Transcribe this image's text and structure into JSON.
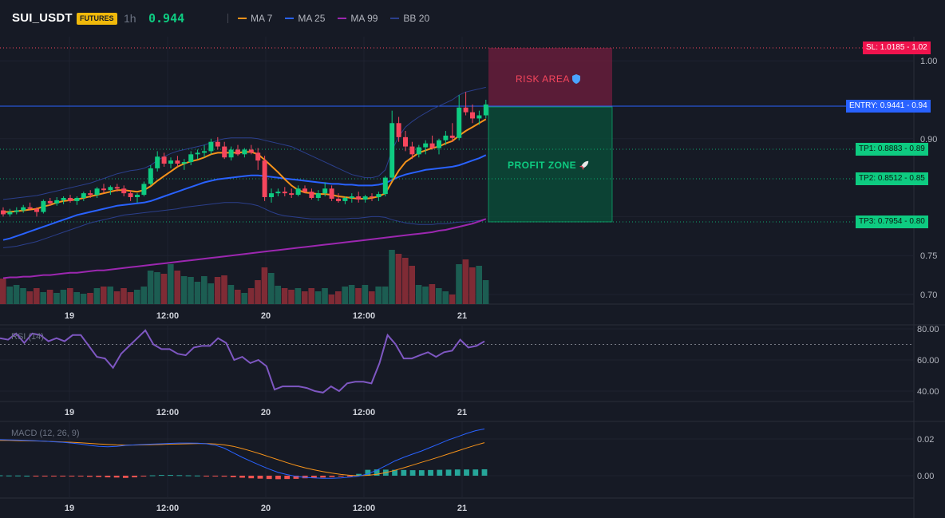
{
  "header": {
    "symbol": "SUI_USDT",
    "badge": "FUTURES",
    "timeframe": "1h",
    "last_price": "0.944",
    "indicators": [
      {
        "name": "MA 7",
        "color": "#f7931a"
      },
      {
        "name": "MA 25",
        "color": "#2962ff"
      },
      {
        "name": "MA 99",
        "color": "#9c27b0"
      },
      {
        "name": "BB 20",
        "color": "#2b3f8c"
      }
    ]
  },
  "zones": {
    "risk": "RISK AREA",
    "risk_icon": "shield-icon",
    "profit": "PROFIT ZONE",
    "profit_icon": "rocket-icon"
  },
  "levels": {
    "sl": "SL: 1.0185",
    "sl_axis": "1.02",
    "entry": "ENTRY: 0.9441",
    "entry_axis": "0.94",
    "tp1": "TP1: 0.8883",
    "tp1_axis": "0.89",
    "tp2": "TP2: 0.8512",
    "tp2_axis": "0.85",
    "tp3": "TP3: 0.7954",
    "tp3_axis": "0.80"
  },
  "colors": {
    "up": "#0ecb81",
    "down": "#f6465d",
    "sl": "#f6465d",
    "entry": "#2962ff",
    "tp": "#0ecb81",
    "rsi": "#7e57c2",
    "macd": "#2962ff",
    "signal": "#f7931a"
  },
  "chart_data": [
    {
      "type": "candlestick",
      "x_ticks": [
        "19",
        "12:00",
        "20",
        "12:00",
        "21"
      ],
      "y_ticks": [
        "1.00",
        "0.90",
        "0.75",
        "0.70"
      ],
      "candles": [
        [
          0.808,
          0.812,
          0.8,
          0.803
        ],
        [
          0.803,
          0.81,
          0.8,
          0.806
        ],
        [
          0.806,
          0.812,
          0.803,
          0.808
        ],
        [
          0.808,
          0.815,
          0.805,
          0.812
        ],
        [
          0.812,
          0.818,
          0.808,
          0.81
        ],
        [
          0.81,
          0.812,
          0.8,
          0.806
        ],
        [
          0.806,
          0.822,
          0.804,
          0.82
        ],
        [
          0.82,
          0.824,
          0.814,
          0.817
        ],
        [
          0.817,
          0.825,
          0.814,
          0.821
        ],
        [
          0.821,
          0.826,
          0.816,
          0.824
        ],
        [
          0.824,
          0.828,
          0.818,
          0.82
        ],
        [
          0.82,
          0.826,
          0.815,
          0.824
        ],
        [
          0.824,
          0.832,
          0.82,
          0.83
        ],
        [
          0.83,
          0.834,
          0.824,
          0.828
        ],
        [
          0.828,
          0.838,
          0.824,
          0.836
        ],
        [
          0.836,
          0.842,
          0.83,
          0.834
        ],
        [
          0.834,
          0.84,
          0.828,
          0.838
        ],
        [
          0.838,
          0.842,
          0.832,
          0.836
        ],
        [
          0.836,
          0.84,
          0.826,
          0.83
        ],
        [
          0.83,
          0.834,
          0.82,
          0.825
        ],
        [
          0.825,
          0.83,
          0.818,
          0.828
        ],
        [
          0.828,
          0.845,
          0.826,
          0.842
        ],
        [
          0.842,
          0.866,
          0.84,
          0.862
        ],
        [
          0.862,
          0.884,
          0.858,
          0.877
        ],
        [
          0.877,
          0.882,
          0.864,
          0.868
        ],
        [
          0.868,
          0.876,
          0.862,
          0.872
        ],
        [
          0.872,
          0.878,
          0.864,
          0.868
        ],
        [
          0.868,
          0.874,
          0.86,
          0.87
        ],
        [
          0.87,
          0.884,
          0.866,
          0.88
        ],
        [
          0.88,
          0.886,
          0.874,
          0.882
        ],
        [
          0.882,
          0.892,
          0.876,
          0.884
        ],
        [
          0.884,
          0.9,
          0.88,
          0.896
        ],
        [
          0.896,
          0.902,
          0.886,
          0.89
        ],
        [
          0.89,
          0.896,
          0.874,
          0.876
        ],
        [
          0.876,
          0.89,
          0.872,
          0.886
        ],
        [
          0.886,
          0.892,
          0.878,
          0.88
        ],
        [
          0.88,
          0.888,
          0.876,
          0.886
        ],
        [
          0.886,
          0.892,
          0.88,
          0.882
        ],
        [
          0.882,
          0.888,
          0.86,
          0.872
        ],
        [
          0.872,
          0.878,
          0.82,
          0.825
        ],
        [
          0.825,
          0.836,
          0.818,
          0.83
        ],
        [
          0.83,
          0.836,
          0.826,
          0.832
        ],
        [
          0.832,
          0.838,
          0.826,
          0.83
        ],
        [
          0.83,
          0.836,
          0.824,
          0.828
        ],
        [
          0.828,
          0.84,
          0.826,
          0.836
        ],
        [
          0.836,
          0.84,
          0.83,
          0.832
        ],
        [
          0.832,
          0.836,
          0.822,
          0.824
        ],
        [
          0.824,
          0.834,
          0.82,
          0.83
        ],
        [
          0.83,
          0.844,
          0.826,
          0.836
        ],
        [
          0.836,
          0.84,
          0.82,
          0.823
        ],
        [
          0.823,
          0.83,
          0.818,
          0.82
        ],
        [
          0.82,
          0.826,
          0.816,
          0.824
        ],
        [
          0.824,
          0.83,
          0.818,
          0.826
        ],
        [
          0.826,
          0.832,
          0.818,
          0.822
        ],
        [
          0.822,
          0.828,
          0.818,
          0.826
        ],
        [
          0.826,
          0.83,
          0.82,
          0.825
        ],
        [
          0.825,
          0.832,
          0.82,
          0.829
        ],
        [
          0.829,
          0.852,
          0.826,
          0.85
        ],
        [
          0.85,
          0.936,
          0.846,
          0.92
        ],
        [
          0.92,
          0.928,
          0.896,
          0.902
        ],
        [
          0.902,
          0.91,
          0.884,
          0.89
        ],
        [
          0.89,
          0.896,
          0.874,
          0.88
        ],
        [
          0.88,
          0.892,
          0.876,
          0.889
        ],
        [
          0.889,
          0.898,
          0.88,
          0.894
        ],
        [
          0.894,
          0.904,
          0.886,
          0.888
        ],
        [
          0.888,
          0.9,
          0.88,
          0.898
        ],
        [
          0.898,
          0.91,
          0.892,
          0.904
        ],
        [
          0.904,
          0.92,
          0.896,
          0.901
        ],
        [
          0.901,
          0.956,
          0.898,
          0.94
        ],
        [
          0.94,
          0.96,
          0.93,
          0.934
        ],
        [
          0.934,
          0.944,
          0.92,
          0.926
        ],
        [
          0.926,
          0.936,
          0.918,
          0.93
        ],
        [
          0.93,
          0.95,
          0.926,
          0.944
        ]
      ],
      "ma7": [
        0.806,
        0.806,
        0.807,
        0.808,
        0.809,
        0.81,
        0.813,
        0.815,
        0.818,
        0.82,
        0.821,
        0.822,
        0.824,
        0.826,
        0.828,
        0.83,
        0.832,
        0.834,
        0.834,
        0.833,
        0.832,
        0.834,
        0.839,
        0.846,
        0.852,
        0.858,
        0.864,
        0.868,
        0.871,
        0.873,
        0.876,
        0.88,
        0.882,
        0.882,
        0.882,
        0.882,
        0.883,
        0.883,
        0.88,
        0.873,
        0.865,
        0.857,
        0.848,
        0.84,
        0.834,
        0.831,
        0.83,
        0.829,
        0.829,
        0.828,
        0.826,
        0.825,
        0.824,
        0.823,
        0.823,
        0.824,
        0.826,
        0.83,
        0.845,
        0.859,
        0.87,
        0.876,
        0.882,
        0.885,
        0.888,
        0.89,
        0.894,
        0.897,
        0.904,
        0.91,
        0.915,
        0.92,
        0.925
      ],
      "ma25": [
        0.77,
        0.772,
        0.775,
        0.778,
        0.781,
        0.784,
        0.787,
        0.79,
        0.793,
        0.796,
        0.799,
        0.802,
        0.804,
        0.806,
        0.808,
        0.81,
        0.812,
        0.814,
        0.815,
        0.816,
        0.817,
        0.818,
        0.82,
        0.823,
        0.826,
        0.829,
        0.832,
        0.835,
        0.838,
        0.841,
        0.844,
        0.846,
        0.848,
        0.849,
        0.85,
        0.851,
        0.852,
        0.853,
        0.853,
        0.852,
        0.851,
        0.85,
        0.849,
        0.848,
        0.847,
        0.846,
        0.845,
        0.844,
        0.843,
        0.842,
        0.842,
        0.841,
        0.841,
        0.84,
        0.84,
        0.84,
        0.841,
        0.843,
        0.847,
        0.851,
        0.854,
        0.856,
        0.858,
        0.86,
        0.861,
        0.862,
        0.863,
        0.864,
        0.866,
        0.869,
        0.872,
        0.875,
        0.879
      ],
      "ma99": [
        0.721,
        0.722,
        0.722,
        0.723,
        0.723,
        0.724,
        0.725,
        0.725,
        0.726,
        0.727,
        0.728,
        0.728,
        0.729,
        0.73,
        0.731,
        0.731,
        0.732,
        0.733,
        0.734,
        0.735,
        0.736,
        0.737,
        0.738,
        0.739,
        0.74,
        0.741,
        0.742,
        0.743,
        0.744,
        0.745,
        0.746,
        0.747,
        0.748,
        0.749,
        0.75,
        0.751,
        0.752,
        0.753,
        0.754,
        0.755,
        0.756,
        0.757,
        0.758,
        0.759,
        0.76,
        0.761,
        0.762,
        0.763,
        0.764,
        0.765,
        0.766,
        0.767,
        0.768,
        0.769,
        0.77,
        0.771,
        0.772,
        0.773,
        0.774,
        0.775,
        0.776,
        0.777,
        0.778,
        0.779,
        0.78,
        0.782,
        0.783,
        0.785,
        0.787,
        0.789,
        0.791,
        0.794,
        0.797
      ],
      "bb_upper": [
        0.822,
        0.823,
        0.824,
        0.825,
        0.826,
        0.827,
        0.829,
        0.831,
        0.833,
        0.835,
        0.837,
        0.839,
        0.841,
        0.843,
        0.846,
        0.849,
        0.852,
        0.855,
        0.857,
        0.859,
        0.86,
        0.862,
        0.866,
        0.872,
        0.877,
        0.881,
        0.884,
        0.886,
        0.888,
        0.89,
        0.892,
        0.895,
        0.898,
        0.9,
        0.901,
        0.901,
        0.901,
        0.901,
        0.9,
        0.898,
        0.896,
        0.894,
        0.892,
        0.89,
        0.886,
        0.882,
        0.878,
        0.874,
        0.87,
        0.866,
        0.862,
        0.858,
        0.854,
        0.852,
        0.85,
        0.85,
        0.852,
        0.86,
        0.885,
        0.903,
        0.915,
        0.922,
        0.928,
        0.933,
        0.938,
        0.942,
        0.946,
        0.95,
        0.956,
        0.96,
        0.962,
        0.964,
        0.966
      ],
      "bb_lower": [
        0.76,
        0.761,
        0.762,
        0.764,
        0.766,
        0.768,
        0.771,
        0.774,
        0.777,
        0.78,
        0.783,
        0.786,
        0.789,
        0.792,
        0.794,
        0.796,
        0.798,
        0.8,
        0.802,
        0.803,
        0.804,
        0.805,
        0.806,
        0.807,
        0.808,
        0.809,
        0.81,
        0.812,
        0.813,
        0.814,
        0.815,
        0.816,
        0.817,
        0.818,
        0.818,
        0.818,
        0.817,
        0.816,
        0.814,
        0.81,
        0.806,
        0.803,
        0.801,
        0.8,
        0.799,
        0.798,
        0.797,
        0.797,
        0.797,
        0.797,
        0.797,
        0.797,
        0.798,
        0.798,
        0.799,
        0.8,
        0.8,
        0.799,
        0.796,
        0.794,
        0.792,
        0.791,
        0.79,
        0.79,
        0.79,
        0.791,
        0.791,
        0.792,
        0.793,
        0.793,
        0.794,
        0.795,
        0.797
      ],
      "volume": [
        32,
        22,
        24,
        20,
        16,
        20,
        15,
        18,
        14,
        18,
        20,
        15,
        13,
        14,
        20,
        22,
        22,
        16,
        20,
        15,
        18,
        22,
        42,
        40,
        38,
        50,
        42,
        35,
        34,
        28,
        35,
        26,
        34,
        36,
        24,
        18,
        14,
        20,
        30,
        46,
        39,
        23,
        20,
        18,
        20,
        16,
        20,
        16,
        20,
        12,
        16,
        22,
        24,
        20,
        24,
        16,
        22,
        22,
        68,
        63,
        58,
        48,
        24,
        22,
        25,
        20,
        16,
        12,
        50,
        56,
        46,
        48,
        30
      ],
      "sl": 1.0185,
      "entry": 0.9441,
      "tp1": 0.8883,
      "tp2": 0.8512,
      "tp3": 0.7954
    },
    {
      "type": "line",
      "title": "RSI (14)",
      "y_ticks": [
        "80.00",
        "60.00",
        "40.00"
      ],
      "overbought": 70,
      "values": [
        74,
        73,
        77,
        71,
        77,
        76,
        72,
        74,
        72,
        76,
        76,
        69,
        62,
        61,
        55,
        64,
        69,
        74,
        79,
        70,
        67,
        67,
        64,
        63,
        68,
        69,
        69,
        74,
        71,
        60,
        62,
        58,
        60,
        56,
        41,
        43,
        43,
        43,
        42,
        40,
        39,
        43,
        40,
        45,
        46,
        46,
        45,
        58,
        76,
        70,
        61,
        61,
        63,
        65,
        62,
        65,
        66,
        73,
        68,
        69,
        72
      ]
    },
    {
      "type": "bar",
      "title": "MACD (12, 26, 9)",
      "y_ticks": [
        "0.02",
        "0.00"
      ],
      "macd": [
        0.0196,
        0.0195,
        0.0194,
        0.0192,
        0.019,
        0.0188,
        0.0185,
        0.0182,
        0.0178,
        0.0172,
        0.0165,
        0.016,
        0.0158,
        0.016,
        0.0165,
        0.0168,
        0.017,
        0.0172,
        0.0174,
        0.0176,
        0.0178,
        0.0178,
        0.0177,
        0.0174,
        0.0166,
        0.015,
        0.0125,
        0.01,
        0.0078,
        0.0056,
        0.0036,
        0.0018,
        0.0006,
        -0.0004,
        -0.0009,
        -0.0012,
        -0.0014,
        -0.0014,
        -0.0012,
        -0.0008,
        -0.0002,
        0.001,
        0.003,
        0.0055,
        0.008,
        0.01,
        0.0118,
        0.0135,
        0.0155,
        0.0175,
        0.0195,
        0.0212,
        0.023,
        0.0245,
        0.0255
      ],
      "signal": [
        0.0192,
        0.0192,
        0.0191,
        0.019,
        0.0189,
        0.0188,
        0.0186,
        0.0184,
        0.0182,
        0.0179,
        0.0176,
        0.0173,
        0.017,
        0.0168,
        0.0167,
        0.0167,
        0.0168,
        0.0169,
        0.017,
        0.0172,
        0.0173,
        0.0174,
        0.0175,
        0.0175,
        0.0173,
        0.0168,
        0.016,
        0.0148,
        0.0134,
        0.0119,
        0.0103,
        0.0087,
        0.0071,
        0.0056,
        0.0043,
        0.0032,
        0.0022,
        0.0014,
        0.0007,
        0.0002,
        0.0,
        0.0002,
        0.0008,
        0.0017,
        0.0029,
        0.0043,
        0.0058,
        0.0073,
        0.0088,
        0.0103,
        0.0119,
        0.0135,
        0.0151,
        0.0166,
        0.018
      ],
      "histogram": [
        0.0002,
        0.0001,
        0.0001,
        0.0,
        -0.0001,
        -0.0002,
        -0.0002,
        -0.0002,
        -0.0003,
        -0.0004,
        -0.0006,
        -0.0007,
        -0.0009,
        -0.001,
        -0.0012,
        -0.0009,
        -0.0004,
        0.0002,
        0.0004,
        0.0004,
        0.0003,
        0.0002,
        0.0001,
        -0.0001,
        -0.0003,
        -0.0005,
        -0.0008,
        -0.0011,
        -0.0014,
        -0.0016,
        -0.0018,
        -0.0019,
        -0.0018,
        -0.0017,
        -0.0014,
        -0.0012,
        -0.001,
        -0.0007,
        -0.0004,
        -0.0002,
        0.001,
        0.0032,
        0.0034,
        0.0033,
        0.0032,
        0.0031,
        0.003,
        0.003,
        0.0031,
        0.0032,
        0.0033,
        0.0034,
        0.0034,
        0.0034,
        0.0035
      ]
    }
  ]
}
